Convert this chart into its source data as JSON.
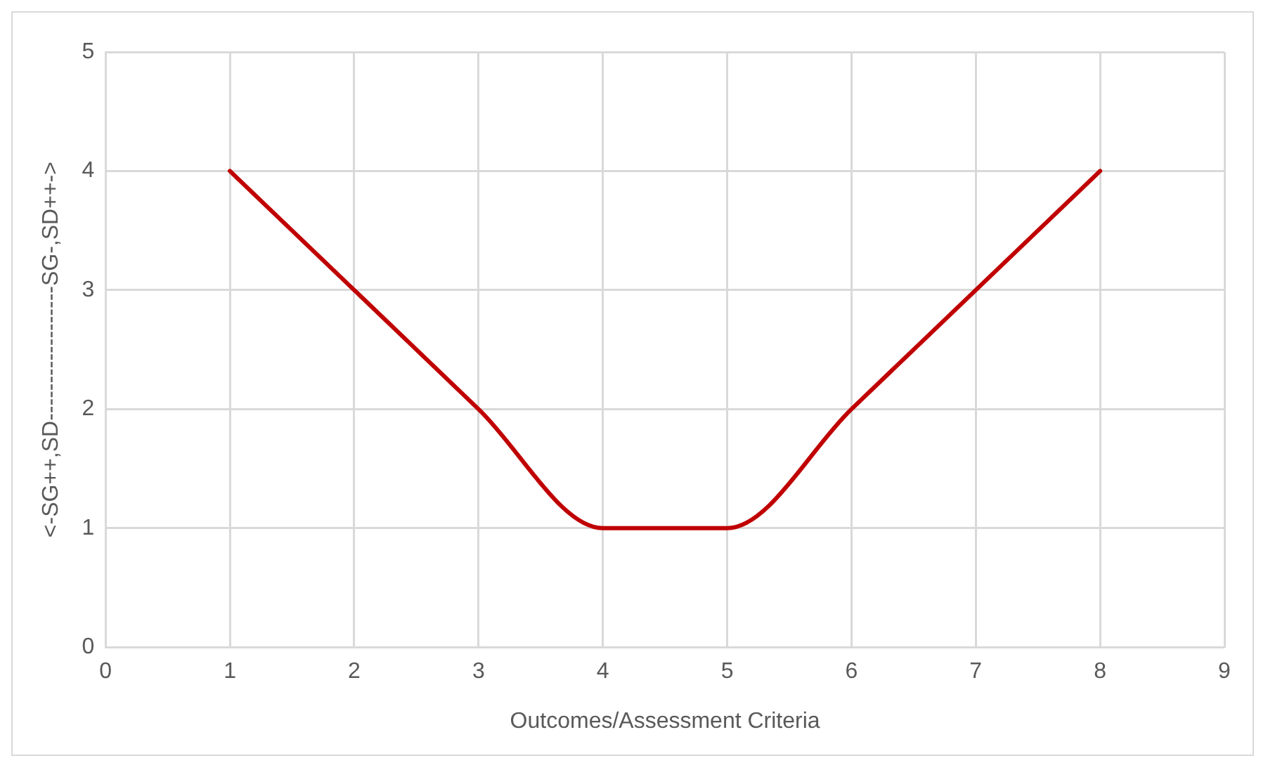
{
  "chart_data": {
    "type": "line",
    "xlabel": "Outcomes/Assessment Criteria",
    "ylabel": "<-SG++,SD------------------SG-,SD++->",
    "x": [
      1,
      2,
      3,
      4,
      5,
      6,
      7,
      8
    ],
    "series": [
      {
        "color": "#c00000",
        "values": [
          4,
          3,
          2,
          1,
          1,
          2,
          3,
          4
        ]
      }
    ],
    "xlim": [
      0,
      9
    ],
    "xticks": [
      0,
      1,
      2,
      3,
      4,
      5,
      6,
      7,
      8,
      9
    ],
    "ylim": [
      0,
      5
    ],
    "yticks": [
      0,
      1,
      2,
      3,
      4,
      5
    ],
    "grid": true,
    "legend": false,
    "marker": "none",
    "line_style": "solid"
  }
}
